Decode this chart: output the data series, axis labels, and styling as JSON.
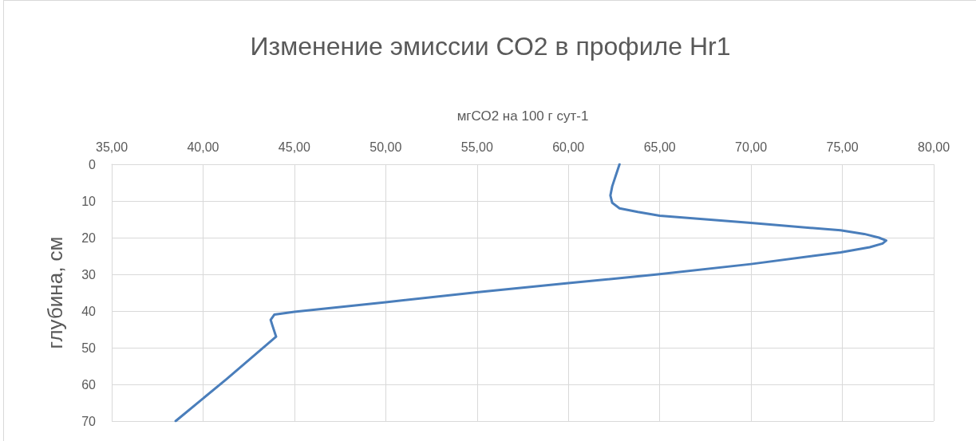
{
  "chart_data": {
    "type": "line",
    "title": "Изменение эмиссии СО2 в профиле Hr1",
    "xlabel": "мгСО2 на 100 г сут-1",
    "ylabel": "глубина, см",
    "series": [
      {
        "color": "#4a7ebb",
        "x": [
          62.8,
          62.6,
          62.4,
          62.3,
          62.4,
          62.8,
          63.8,
          65.0,
          70.0,
          74.9,
          76.2,
          77.0,
          77.4,
          77.2,
          76.5,
          74.9,
          70.0,
          64.9,
          60.0,
          55.2,
          50.0,
          45.0,
          43.9,
          43.7,
          43.8,
          44.0,
          41.3,
          38.5
        ],
        "values": [
          0,
          3,
          6,
          8.5,
          10.5,
          12,
          13,
          14,
          16,
          18,
          19,
          20,
          20.8,
          21.6,
          22.6,
          24,
          27.2,
          30,
          32.4,
          34.8,
          37.6,
          40.2,
          41,
          42.4,
          44,
          47,
          58.5,
          70
        ]
      }
    ],
    "xlim": [
      35,
      80
    ],
    "xticks": [
      {
        "value": 35,
        "label": "35,00"
      },
      {
        "value": 40,
        "label": "40,00"
      },
      {
        "value": 45,
        "label": "45,00"
      },
      {
        "value": 50,
        "label": "50,00"
      },
      {
        "value": 55,
        "label": "55,00"
      },
      {
        "value": 60,
        "label": "60,00"
      },
      {
        "value": 65,
        "label": "65,00"
      },
      {
        "value": 70,
        "label": "70,00"
      },
      {
        "value": 75,
        "label": "75,00"
      },
      {
        "value": 80,
        "label": "80,00"
      }
    ],
    "ylim": [
      70,
      0
    ],
    "yticks": [
      0,
      10,
      20,
      30,
      40,
      50,
      60,
      70
    ],
    "grid": true,
    "marker": "none",
    "line_style": "solid"
  }
}
